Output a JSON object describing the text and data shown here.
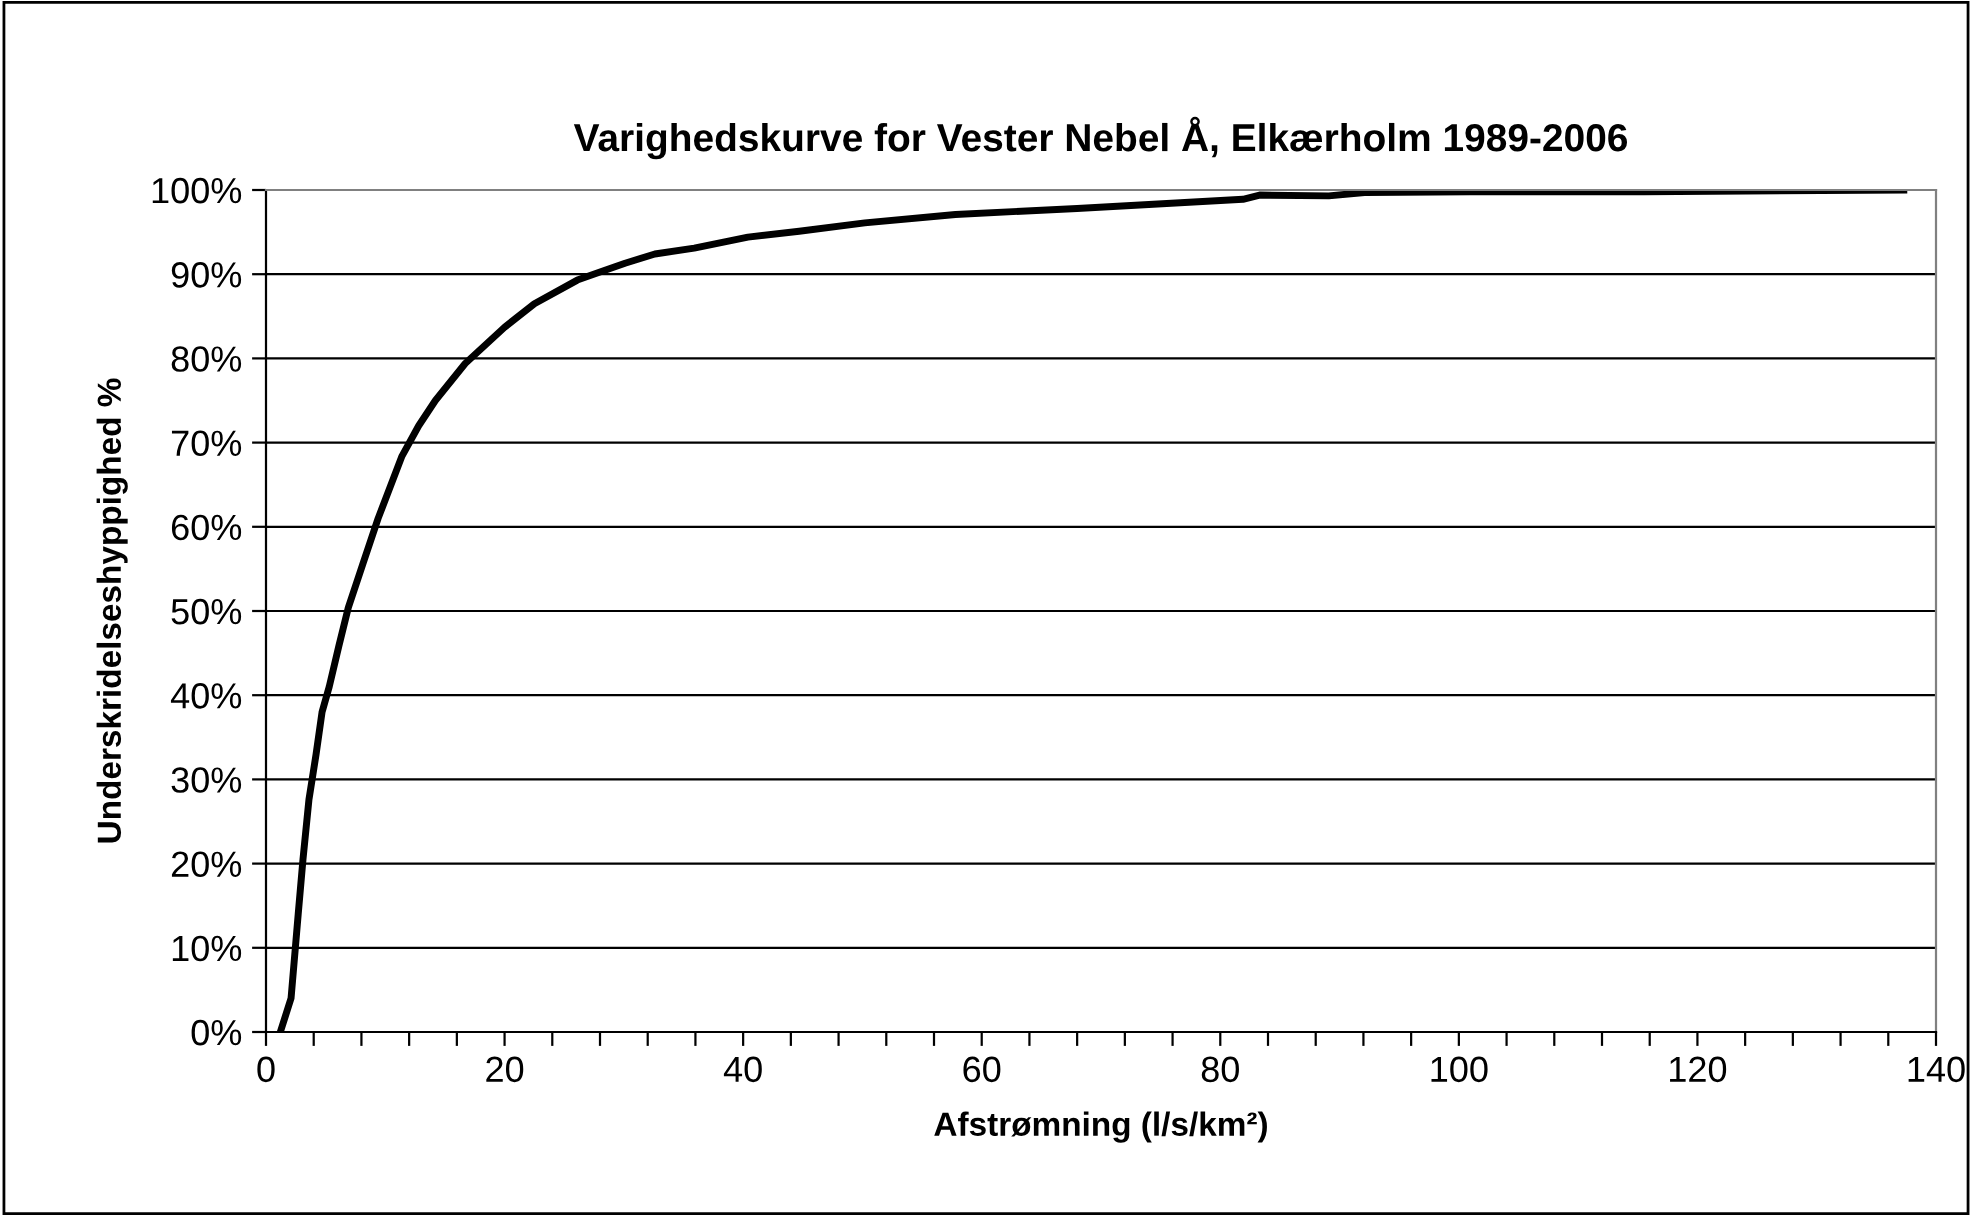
{
  "chart_data": {
    "type": "line",
    "title": "Varighedskurve for Vester Nebel Å, Elkærholm 1989-2006",
    "xlabel": "Afstrømning (l/s/km²)",
    "ylabel": "Underskridelseshyppighed %",
    "series": [
      {
        "color": "#000000",
        "x": [
          1.2,
          2.1,
          2.7,
          3.1,
          3.6,
          4.2,
          4.7,
          5.3,
          6.1,
          6.9,
          8.1,
          9.4,
          11.4,
          12.8,
          14.2,
          16.7,
          20,
          22.5,
          26.1,
          28.3,
          30.1,
          32.6,
          35.9,
          40.4,
          44.7,
          50.2,
          57.8,
          68,
          81.9,
          83.3,
          89.1,
          92.1,
          100.9,
          115.5,
          137.3
        ],
        "values": [
          0,
          4,
          14,
          20.5,
          27.6,
          33,
          38,
          41,
          45.8,
          50.4,
          55.5,
          61,
          68.4,
          72,
          75,
          79.4,
          83.7,
          86.5,
          89.3,
          90.4,
          91.3,
          92.4,
          93.1,
          94.4,
          95.1,
          96.1,
          97.1,
          97.8,
          98.9,
          99.4,
          99.3,
          99.7,
          99.8,
          99.8,
          100
        ]
      }
    ],
    "xlim": [
      0,
      140
    ],
    "ylim": [
      0,
      100
    ],
    "xticks": [
      0,
      {
        "value": 4,
        "label": null
      },
      {
        "value": 8,
        "label": null
      },
      {
        "value": 12,
        "label": null
      },
      {
        "value": 16,
        "label": null
      },
      20,
      {
        "value": 24,
        "label": null
      },
      {
        "value": 28,
        "label": null
      },
      {
        "value": 32,
        "label": null
      },
      {
        "value": 36,
        "label": null
      },
      40,
      {
        "value": 44,
        "label": null
      },
      {
        "value": 48,
        "label": null
      },
      {
        "value": 52,
        "label": null
      },
      {
        "value": 56,
        "label": null
      },
      60,
      {
        "value": 64,
        "label": null
      },
      {
        "value": 68,
        "label": null
      },
      {
        "value": 72,
        "label": null
      },
      {
        "value": 76,
        "label": null
      },
      80,
      {
        "value": 84,
        "label": null
      },
      {
        "value": 88,
        "label": null
      },
      {
        "value": 92,
        "label": null
      },
      {
        "value": 96,
        "label": null
      },
      100,
      {
        "value": 104,
        "label": null
      },
      {
        "value": 108,
        "label": null
      },
      {
        "value": 112,
        "label": null
      },
      {
        "value": 116,
        "label": null
      },
      120,
      {
        "value": 124,
        "label": null
      },
      {
        "value": 128,
        "label": null
      },
      {
        "value": 132,
        "label": null
      },
      {
        "value": 136,
        "label": null
      },
      140
    ],
    "yticks": [
      {
        "value": 0,
        "label": "0%"
      },
      {
        "value": 10,
        "label": "10%"
      },
      {
        "value": 20,
        "label": "20%"
      },
      {
        "value": 30,
        "label": "30%"
      },
      {
        "value": 40,
        "label": "40%"
      },
      {
        "value": 50,
        "label": "50%"
      },
      {
        "value": 60,
        "label": "60%"
      },
      {
        "value": 70,
        "label": "70%"
      },
      {
        "value": 80,
        "label": "80%"
      },
      {
        "value": 90,
        "label": "90%"
      },
      {
        "value": 100,
        "label": "100%"
      }
    ],
    "grid": "y",
    "legend": false,
    "marker": "none",
    "line_style": "solid"
  }
}
